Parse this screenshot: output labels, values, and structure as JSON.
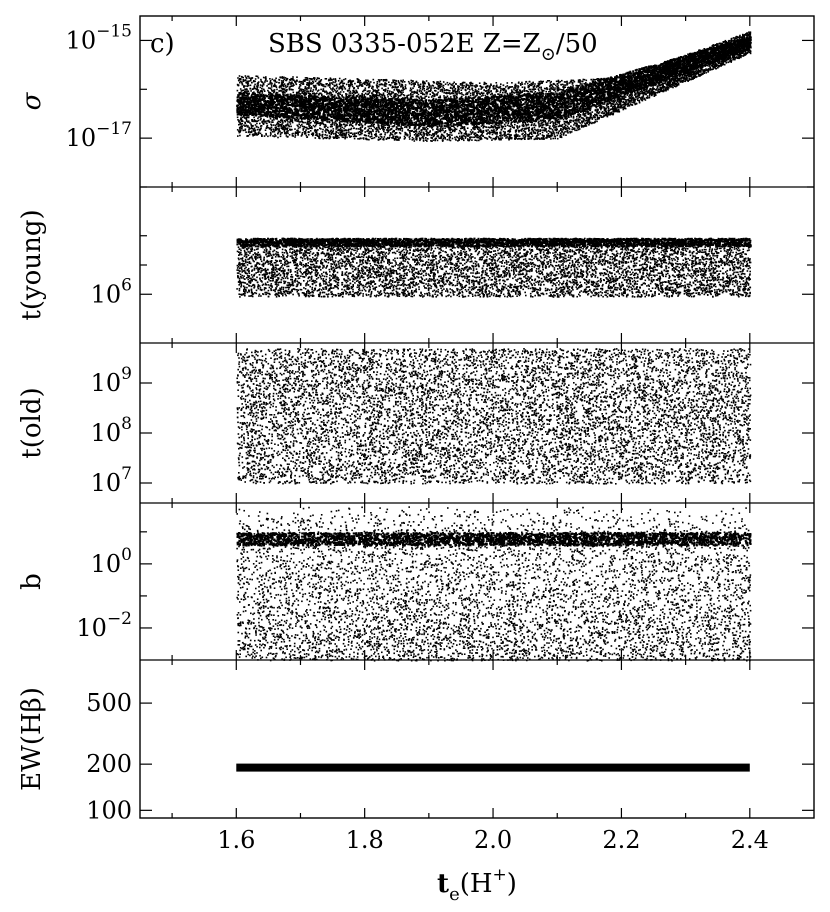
{
  "chart_data": {
    "type": "scatter",
    "panel_tag": "c)",
    "title_main": "SBS 0335-052E  Z=Z",
    "title_sub": "⊙",
    "title_tail": "/50",
    "xlabel_main": "t",
    "xlabel_sub": "e",
    "xlabel_tail": "(H",
    "xlabel_sup": "+",
    "xlabel_close": ")",
    "xlim": [
      1.45,
      2.5
    ],
    "xticks": [
      {
        "v": 1.6,
        "label": "1.6"
      },
      {
        "v": 1.8,
        "label": "1.8"
      },
      {
        "v": 2.0,
        "label": "2.0"
      },
      {
        "v": 2.2,
        "label": "2.2"
      },
      {
        "v": 2.4,
        "label": "2.4"
      }
    ],
    "color": "#000000",
    "panels": [
      {
        "key": "sigma",
        "ylabel": "σ",
        "scale": "log",
        "ylim": [
          -18.0,
          -14.5
        ],
        "major": [
          {
            "v": -15,
            "base": "10",
            "exp": "−15"
          },
          {
            "v": -17,
            "base": "10",
            "exp": "−17"
          }
        ],
        "minor": [
          -18,
          -16
        ],
        "x_range": [
          1.6,
          2.4
        ],
        "band_lower": [
          [
            1.6,
            -16.95
          ],
          [
            1.9,
            -17.05
          ],
          [
            2.1,
            -17.0
          ],
          [
            2.4,
            -15.25
          ]
        ],
        "band_upper": [
          [
            1.6,
            -15.7
          ],
          [
            2.0,
            -15.85
          ],
          [
            2.2,
            -15.75
          ],
          [
            2.4,
            -14.8
          ]
        ],
        "dense_band": [
          [
            1.6,
            -16.5,
            -16.05
          ],
          [
            1.9,
            -16.75,
            -16.2
          ],
          [
            2.1,
            -16.6,
            -16.05
          ],
          [
            2.4,
            -15.15,
            -14.9
          ]
        ]
      },
      {
        "key": "young",
        "ylabel": "t(young)",
        "scale": "log",
        "ylim": [
          5.5,
          7.1
        ],
        "major": [
          {
            "v": 6,
            "base": "10",
            "exp": "6"
          }
        ],
        "minor": [
          6.3,
          6.6
        ],
        "x_range": [
          1.6,
          2.4
        ],
        "y_range": [
          5.98,
          6.58
        ],
        "edge_band": [
          6.5,
          6.58
        ]
      },
      {
        "key": "old",
        "ylabel": "t(old)",
        "scale": "log",
        "ylim": [
          6.6,
          9.8
        ],
        "major": [
          {
            "v": 9,
            "base": "10",
            "exp": "9"
          },
          {
            "v": 8,
            "base": "10",
            "exp": "8"
          },
          {
            "v": 7,
            "base": "10",
            "exp": "7"
          }
        ],
        "minor": [],
        "x_range": [
          1.6,
          2.4
        ],
        "y_range": [
          7.0,
          9.7
        ]
      },
      {
        "key": "b",
        "ylabel": "b",
        "scale": "log",
        "ylim": [
          -3.0,
          1.9
        ],
        "major": [
          {
            "v": 0,
            "base": "10",
            "exp": "0"
          },
          {
            "v": -2,
            "base": "10",
            "exp": "−2"
          }
        ],
        "minor": [
          1,
          -1
        ],
        "x_range": [
          1.6,
          2.4
        ],
        "y_range": [
          -3.0,
          1.8
        ],
        "dense_band": [
          0.6,
          1.0
        ]
      },
      {
        "key": "ew",
        "ylabel": "EW(Hβ)",
        "scale": "log",
        "ylim": [
          1.95,
          2.98
        ],
        "major": [
          {
            "v": 2.699,
            "label": "500"
          },
          {
            "v": 2.301,
            "label": "200"
          },
          {
            "v": 2.0,
            "label": "100"
          }
        ],
        "minor": [],
        "x_range": [
          1.6,
          2.4
        ],
        "line_value": 190
      }
    ]
  }
}
